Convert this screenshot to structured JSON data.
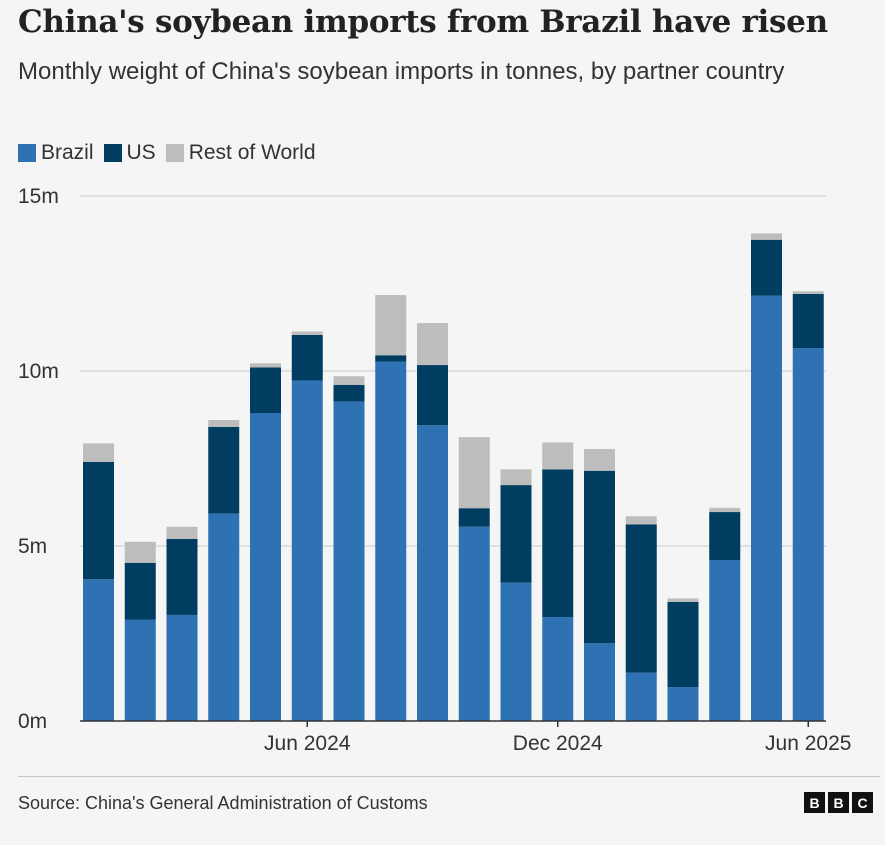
{
  "title": "China's soybean imports from Brazil have risen",
  "subtitle": "Monthly weight of China's soybean imports in tonnes, by partner country",
  "source": "Source: China's General Administration of Customs",
  "logo": [
    "B",
    "B",
    "C"
  ],
  "colors": {
    "Brazil": "#2f72b4",
    "US": "#003d60",
    "Rest of World": "#bdbdbd",
    "grid": "#cccccc",
    "axis": "#333333"
  },
  "legend": [
    {
      "label": "Brazil",
      "color": "#2f72b4"
    },
    {
      "label": "US",
      "color": "#003d60"
    },
    {
      "label": "Rest of World",
      "color": "#bdbdbd"
    }
  ],
  "chart_data": {
    "type": "bar",
    "stacked": true,
    "title": "China's soybean imports from Brazil have risen",
    "subtitle": "Monthly weight of China's soybean imports in tonnes, by partner country",
    "categories": [
      "Jan 2024",
      "Feb 2024",
      "Mar 2024",
      "Apr 2024",
      "May 2024",
      "Jun 2024",
      "Jul 2024",
      "Aug 2024",
      "Sep 2024",
      "Oct 2024",
      "Nov 2024",
      "Dec 2024",
      "Jan 2025",
      "Feb 2025",
      "Mar 2025",
      "Apr 2025",
      "May 2025",
      "Jun 2025"
    ],
    "series": [
      {
        "name": "Brazil",
        "values": [
          4.05,
          2.9,
          3.03,
          5.93,
          8.8,
          9.73,
          9.13,
          10.27,
          8.45,
          5.55,
          3.95,
          2.97,
          2.22,
          1.38,
          0.97,
          4.6,
          12.15,
          10.65
        ]
      },
      {
        "name": "US",
        "values": [
          3.35,
          1.62,
          2.17,
          2.47,
          1.3,
          1.3,
          0.47,
          0.18,
          1.72,
          0.53,
          2.79,
          4.22,
          4.93,
          4.24,
          2.43,
          1.37,
          1.6,
          1.55
        ]
      },
      {
        "name": "Rest of World",
        "values": [
          0.53,
          0.6,
          0.35,
          0.2,
          0.12,
          0.1,
          0.25,
          1.72,
          1.2,
          2.03,
          0.45,
          0.77,
          0.62,
          0.23,
          0.1,
          0.12,
          0.18,
          0.08
        ]
      }
    ],
    "unit": "m tonnes",
    "ylim": [
      0,
      15
    ],
    "yticks": [
      0,
      5,
      10,
      15
    ],
    "yticklabels": [
      "0m",
      "5m",
      "10m",
      "15m"
    ],
    "xticks": [
      {
        "index": 5,
        "label": "Jun 2024"
      },
      {
        "index": 11,
        "label": "Dec 2024"
      },
      {
        "index": 17,
        "label": "Jun 2025"
      }
    ],
    "grid": true,
    "legend_position": "top-left"
  }
}
